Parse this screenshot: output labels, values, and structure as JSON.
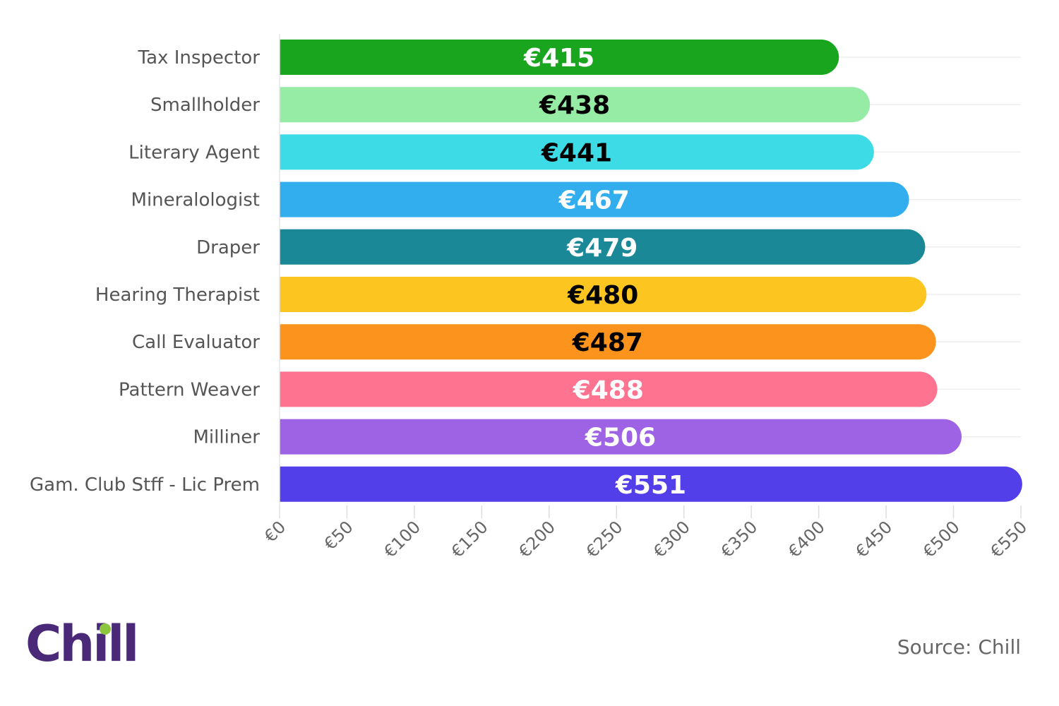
{
  "chart_data": {
    "type": "bar",
    "orientation": "horizontal",
    "categories": [
      "Tax Inspector",
      "Smallholder",
      "Literary Agent",
      "Mineralologist",
      "Draper",
      "Hearing Therapist",
      "Call Evaluator",
      "Pattern Weaver",
      "Milliner",
      "Gam. Club Stff - Lic Prem"
    ],
    "values": [
      415,
      438,
      441,
      467,
      479,
      480,
      487,
      488,
      506,
      551
    ],
    "value_labels": [
      "€415",
      "€438",
      "€441",
      "€467",
      "€479",
      "€480",
      "€487",
      "€488",
      "€506",
      "€551"
    ],
    "bar_colors": [
      "#1aa51f",
      "#96eba5",
      "#3ddbe6",
      "#32aeee",
      "#1b8898",
      "#fcc51f",
      "#fb931d",
      "#fd7390",
      "#9e63e4",
      "#523fe9"
    ],
    "label_colors": [
      "#ffffff",
      "#000000",
      "#000000",
      "#ffffff",
      "#ffffff",
      "#000000",
      "#000000",
      "#ffffff",
      "#ffffff",
      "#ffffff"
    ],
    "xlim": [
      0,
      550
    ],
    "xticks": [
      "€0",
      "€50",
      "€100",
      "€150",
      "€200",
      "€250",
      "€300",
      "€350",
      "€400",
      "€450",
      "€500",
      "€550"
    ],
    "grid": true
  },
  "logo": {
    "text": "Chill",
    "accent_color": "#8cc63f"
  },
  "source": "Source: Chill"
}
